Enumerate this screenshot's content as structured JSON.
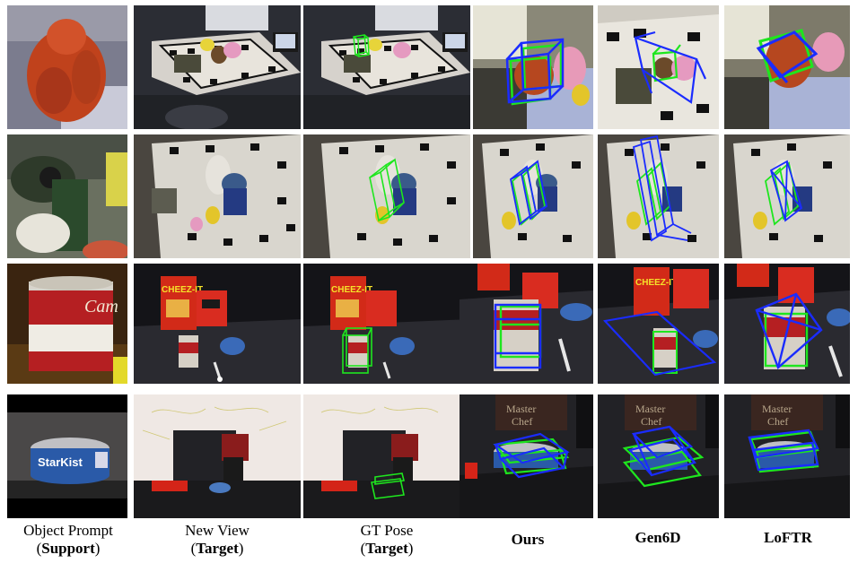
{
  "rows": [
    {
      "name": "row-ape-lm",
      "support": "orange clay figurine (LineMOD ape)"
    },
    {
      "name": "row-drill-lm",
      "support": "green power drill"
    },
    {
      "name": "row-soup-ycb",
      "support": "Campbell's soup can"
    },
    {
      "name": "row-tuna-ycb",
      "support": "StarKist tuna can"
    }
  ],
  "labels": [
    {
      "line1": "Object Prompt",
      "line2_open": "(",
      "line2_bold": "Support",
      "line2_close": ")"
    },
    {
      "line1": "New View",
      "line2_open": "(",
      "line2_bold": "Target",
      "line2_close": ")"
    },
    {
      "line1": "GT Pose",
      "line2_open": "(",
      "line2_bold": "Target",
      "line2_close": ")"
    },
    {
      "line1": "Ours"
    },
    {
      "line1": "Gen6D"
    },
    {
      "line1": "LoFTR"
    }
  ],
  "scene_text": {
    "cheezit": "CHEEZ-IT",
    "starkist": "StarKist",
    "master": "Master",
    "chef": "Chef",
    "cam": "Cam",
    "box_text": "CHEEZ-IT"
  },
  "colors": {
    "gt_box": "#1ee61e",
    "pred_box": "#1a2cff",
    "background": "#ffffff"
  }
}
